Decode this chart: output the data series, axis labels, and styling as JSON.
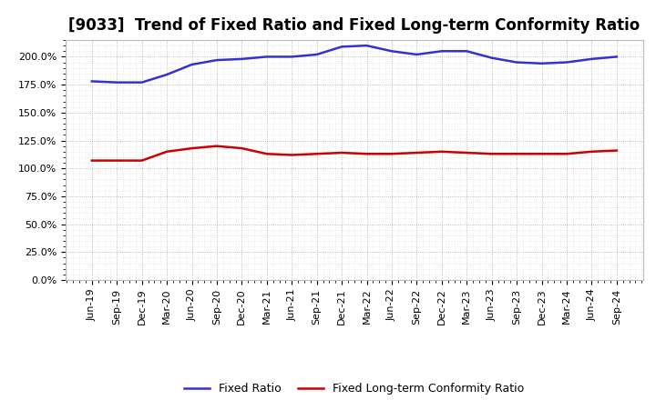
{
  "title": "[9033]  Trend of Fixed Ratio and Fixed Long-term Conformity Ratio",
  "x_labels": [
    "Jun-19",
    "Sep-19",
    "Dec-19",
    "Mar-20",
    "Jun-20",
    "Sep-20",
    "Dec-20",
    "Mar-21",
    "Jun-21",
    "Sep-21",
    "Dec-21",
    "Mar-22",
    "Jun-22",
    "Sep-22",
    "Dec-22",
    "Mar-23",
    "Jun-23",
    "Sep-23",
    "Dec-23",
    "Mar-24",
    "Jun-24",
    "Sep-24"
  ],
  "fixed_ratio": [
    178,
    177,
    177,
    184,
    193,
    197,
    198,
    200,
    200,
    202,
    209,
    210,
    205,
    202,
    205,
    205,
    199,
    195,
    194,
    195,
    198,
    200
  ],
  "fixed_lt_ratio": [
    107,
    107,
    107,
    115,
    118,
    120,
    118,
    113,
    112,
    113,
    114,
    113,
    113,
    114,
    115,
    114,
    113,
    113,
    113,
    113,
    115,
    116
  ],
  "fixed_ratio_color": "#3333CC",
  "fixed_lt_ratio_color": "#CC0000",
  "ylim": [
    0,
    215
  ],
  "yticks": [
    0,
    25,
    50,
    75,
    100,
    125,
    150,
    175,
    200
  ],
  "background_color": "#FFFFFF",
  "plot_bg_color": "#FFFFFF",
  "grid_major_color": "#AAAAAA",
  "grid_minor_color": "#CCCCCC",
  "legend_fixed_ratio": "Fixed Ratio",
  "legend_fixed_lt_ratio": "Fixed Long-term Conformity Ratio",
  "title_fontsize": 12,
  "axis_label_fontsize": 8,
  "line_width": 1.8
}
